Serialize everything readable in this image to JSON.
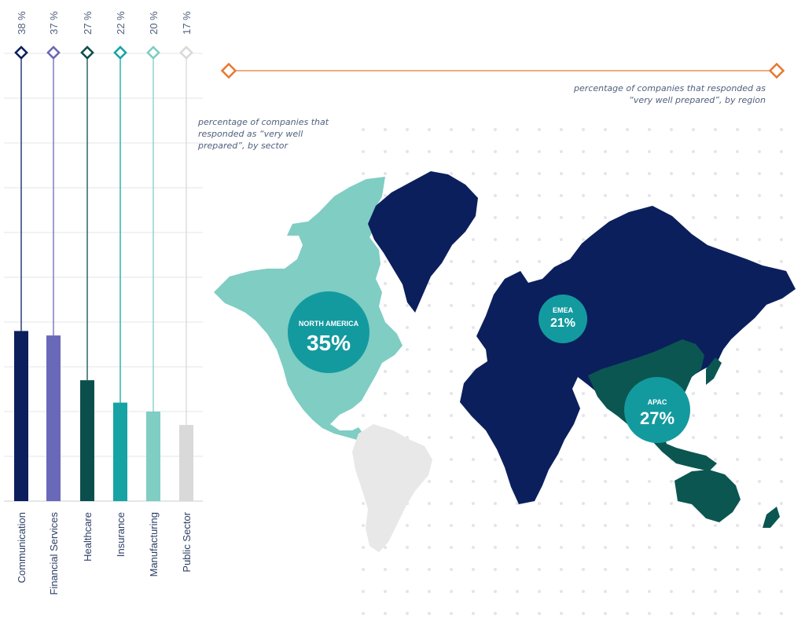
{
  "sector_chart": {
    "note": "percentage of companies that responded as “very well prepared”, by sector"
  },
  "region_map": {
    "note": "percentage of companies that responded as “very well prepared”, by region",
    "regions": [
      {
        "label": "NORTH AMERICA",
        "value_label": "35%",
        "color": "#7fcdc3",
        "marker_color": "#139a9f"
      },
      {
        "label": "EMEA",
        "value_label": "21%",
        "color": "#0b1f5c",
        "marker_color": "#139a9f"
      },
      {
        "label": "APAC",
        "value_label": "27%",
        "color": "#0b5651",
        "marker_color": "#139a9f"
      }
    ],
    "other_color": "#e8e8e8",
    "legend_marker_color": "#e87830"
  },
  "chart_data": [
    {
      "type": "bar",
      "title": "",
      "xlabel": "",
      "ylabel": "",
      "categories": [
        "Communication",
        "Financial Services",
        "Healthcare",
        "Insurance",
        "Manufacturing",
        "Public Sector"
      ],
      "values": [
        38,
        37,
        27,
        22,
        20,
        17
      ],
      "value_labels": [
        "38 %",
        "37 %",
        "27 %",
        "22 %",
        "20 %",
        "17 %"
      ],
      "colors": [
        "#0b1f5c",
        "#6a68b8",
        "#0b4f4c",
        "#17a3a3",
        "#7fcdc3",
        "#d9d9d9"
      ],
      "ylim": [
        0,
        100
      ],
      "grid": true,
      "legend": "none"
    },
    {
      "type": "map",
      "categories": [
        "NORTH AMERICA",
        "EMEA",
        "APAC"
      ],
      "values": [
        35,
        21,
        27
      ]
    }
  ]
}
